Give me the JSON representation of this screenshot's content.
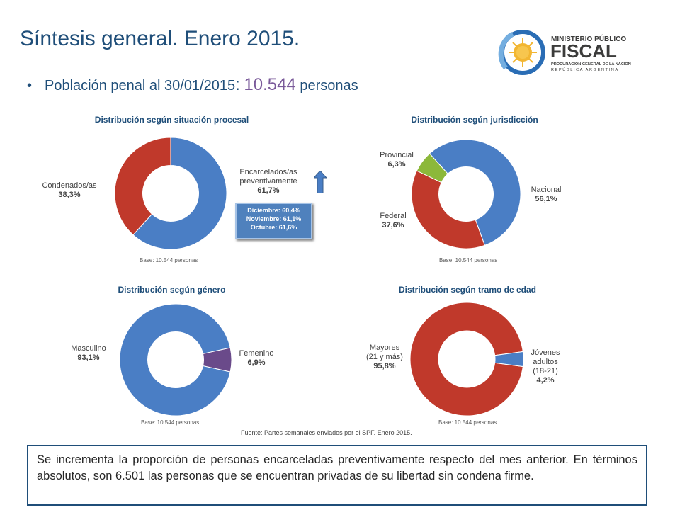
{
  "slide": {
    "title": "Síntesis general. Enero 2015.",
    "bullet_prefix": "Población penal al 30/01/2015",
    "bullet_colon": ":",
    "bullet_number": "10.544",
    "bullet_suffix": "personas"
  },
  "logo": {
    "line1": "MINISTERIO PÚBLICO",
    "line2": "FISCAL",
    "line3": "PROCURACIÓN GENERAL DE LA NACIÓN",
    "line4": "REPÚBLICA ARGENTINA",
    "colors": {
      "blue": "#2a6db5",
      "light_blue": "#74aee0",
      "dark": "#3c3c3b",
      "sun": "#f2b632"
    }
  },
  "colors": {
    "blue": "#4a7ec5",
    "red": "#c0392b",
    "green": "#8cb83a",
    "purple": "#6a4a8a"
  },
  "chart_data": [
    {
      "type": "pie",
      "title": "Distribución según situación procesal",
      "base": "Base: 10.544 personas",
      "slices": [
        {
          "name": "Encarcelados/as preventivamente",
          "value": 61.7,
          "label": "61,7%",
          "color": "#4a7ec5"
        },
        {
          "name": "Condenados/as",
          "value": 38.3,
          "label": "38,3%",
          "color": "#c0392b"
        }
      ],
      "annotation": [
        "Diciembre: 60,4%",
        "Noviembre: 61,1%",
        "Octubre: 61,6%"
      ]
    },
    {
      "type": "pie",
      "title": "Distribución según jurisdicción",
      "base": "Base: 10.544 personas",
      "slices": [
        {
          "name": "Nacional",
          "value": 56.1,
          "label": "56,1%",
          "color": "#4a7ec5"
        },
        {
          "name": "Federal",
          "value": 37.6,
          "label": "37,6%",
          "color": "#c0392b"
        },
        {
          "name": "Provincial",
          "value": 6.3,
          "label": "6,3%",
          "color": "#8cb83a"
        }
      ]
    },
    {
      "type": "pie",
      "title": "Distribución según género",
      "base": "Base: 10.544 personas",
      "slices": [
        {
          "name": "Masculino",
          "value": 93.1,
          "label": "93,1%",
          "color": "#4a7ec5"
        },
        {
          "name": "Femenino",
          "value": 6.9,
          "label": "6,9%",
          "color": "#6a4a8a"
        }
      ]
    },
    {
      "type": "pie",
      "title": "Distribución según tramo de edad",
      "base": "Base: 10.544 personas",
      "slices": [
        {
          "name": "Mayores (21 y más)",
          "value": 95.8,
          "label": "95,8%",
          "color": "#c0392b"
        },
        {
          "name": "Jóvenes adultos (18-21)",
          "value": 4.2,
          "label": "4,2%",
          "color": "#4a7ec5"
        }
      ]
    }
  ],
  "labels": {
    "c1_encarcelados_1": "Encarcelados/as",
    "c1_encarcelados_2": "preventivamente",
    "c1_condenados": "Condenados/as",
    "c2_provincial": "Provincial",
    "c2_federal": "Federal",
    "c2_nacional": "Nacional",
    "c3_masculino": "Masculino",
    "c3_femenino": "Femenino",
    "c4_mayores_1": "Mayores",
    "c4_mayores_2": "(21 y más)",
    "c4_jovenes_1": "Jóvenes",
    "c4_jovenes_2": "adultos",
    "c4_jovenes_3": "(18-21)"
  },
  "source": "Fuente: Partes semanales enviados por el SPF. Enero 2015.",
  "summary": "Se incrementa la proporción de personas encarceladas preventivamente respecto del mes anterior. En términos absolutos, son 6.501 las personas que se encuentran privadas de su libertad sin condena firme."
}
